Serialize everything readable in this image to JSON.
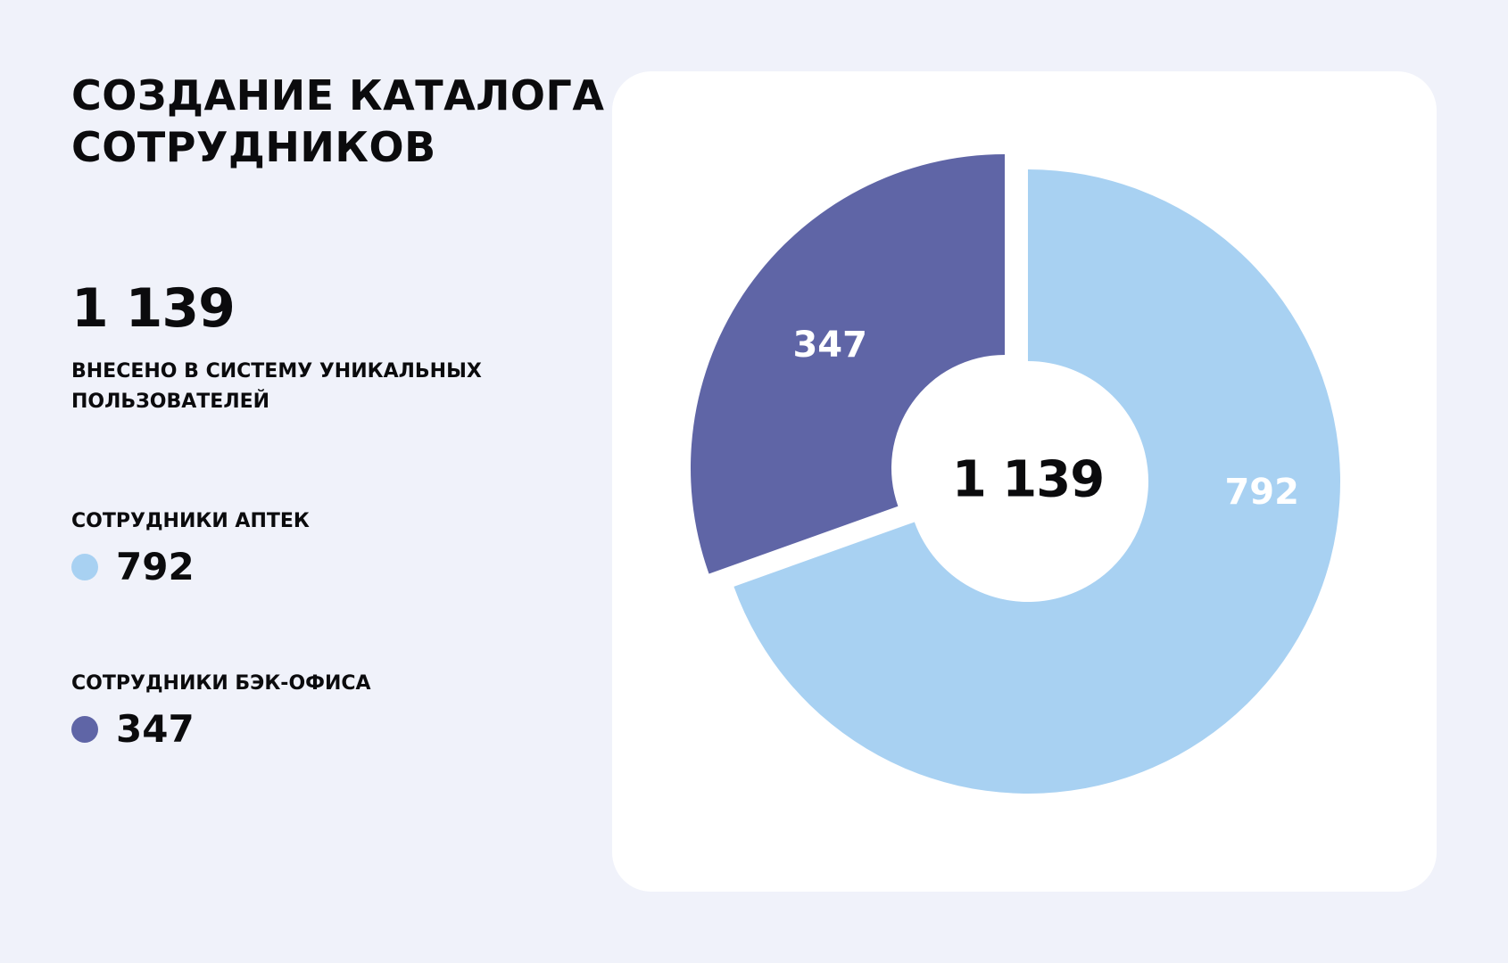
{
  "title_lines": [
    "Создание каталога",
    "сотрудников"
  ],
  "total": {
    "value": "1 139",
    "caption_lines": [
      "Внесено в систему уникальных",
      "пользователей"
    ]
  },
  "legend": [
    {
      "label": "Сотрудники аптек",
      "value": "792",
      "color": "#A8D1F2"
    },
    {
      "label": "Сотрудники бэк-офиса",
      "value": "347",
      "color": "#5F65A6"
    }
  ],
  "chart_data": {
    "type": "pie",
    "variant": "donut",
    "title": "Создание каталога сотрудников",
    "center_label": "1 139",
    "total": 1139,
    "series": [
      {
        "name": "Сотрудники аптек",
        "value": 792,
        "label": "792",
        "color": "#A8D1F2"
      },
      {
        "name": "Сотрудники бэк-офиса",
        "value": 347,
        "label": "347",
        "color": "#5F65A6"
      }
    ]
  }
}
